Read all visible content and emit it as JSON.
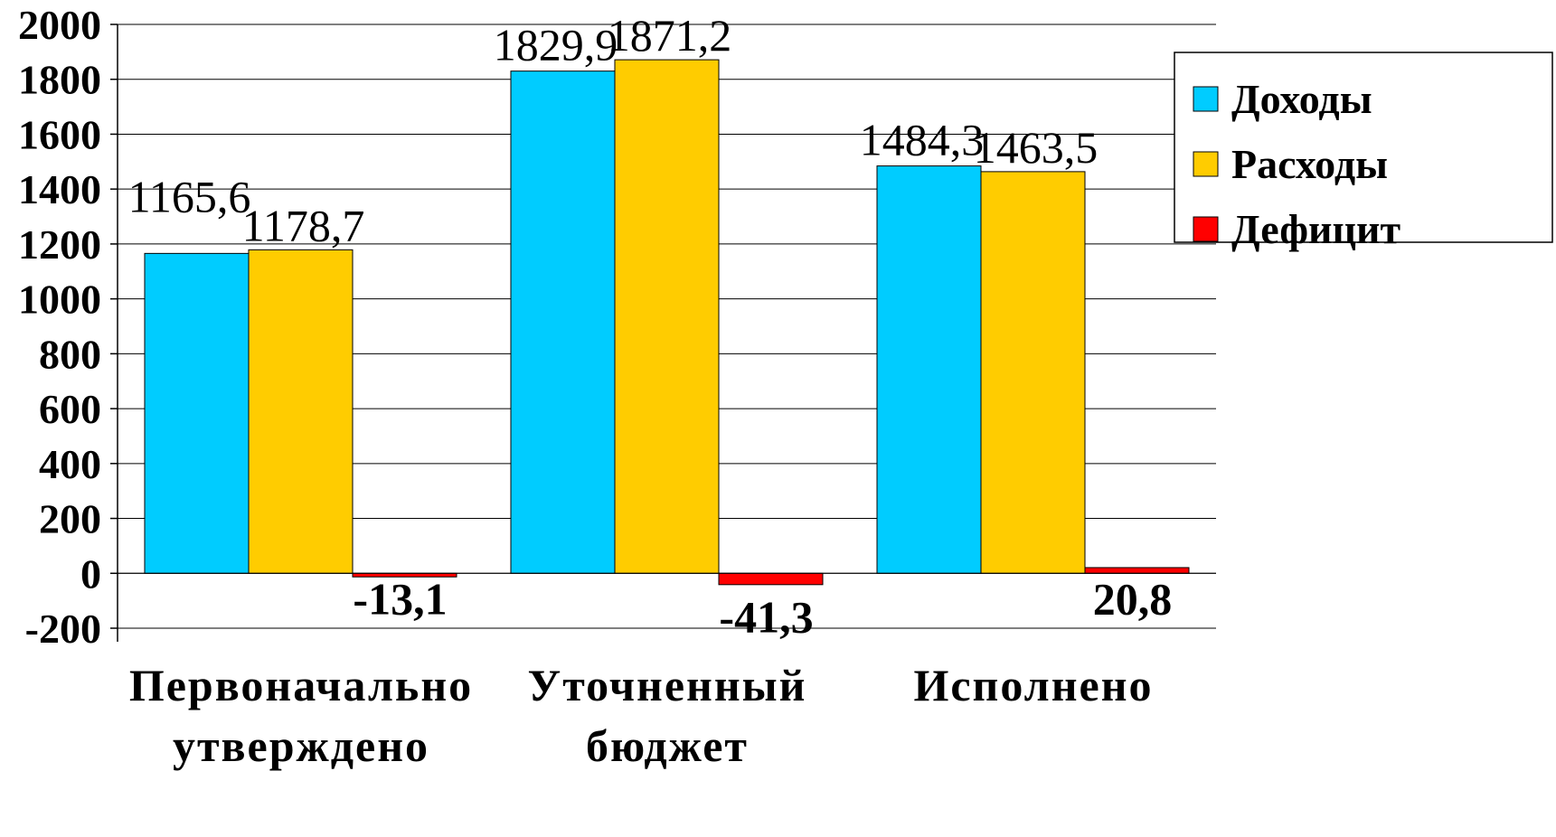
{
  "chart_data": {
    "type": "bar",
    "title": "",
    "xlabel": "",
    "ylabel": "",
    "ylim": [
      -200,
      2000
    ],
    "yticks": [
      2000,
      1800,
      1600,
      1400,
      1200,
      1000,
      800,
      600,
      400,
      200,
      0,
      -200
    ],
    "grid": true,
    "legend_position": "right",
    "categories": [
      [
        "Первоначально",
        "утверждено"
      ],
      [
        "Уточненный",
        "бюджет"
      ],
      [
        "Исполнено"
      ]
    ],
    "series": [
      {
        "name": "Доходы",
        "color": "#00CCFF",
        "values": [
          1165.6,
          1829.9,
          1484.3
        ],
        "labels": [
          "1165,6",
          "1829,9",
          "1484,3"
        ]
      },
      {
        "name": "Расходы",
        "color": "#FFCC00",
        "values": [
          1178.7,
          1871.2,
          1463.5
        ],
        "labels": [
          "1178,7",
          "1871,2",
          "1463,5"
        ]
      },
      {
        "name": "Дефицит",
        "color": "#FF0000",
        "values": [
          -13.1,
          -41.3,
          20.8
        ],
        "labels": [
          "-13,1",
          "-41,3",
          "20,8"
        ]
      }
    ]
  }
}
